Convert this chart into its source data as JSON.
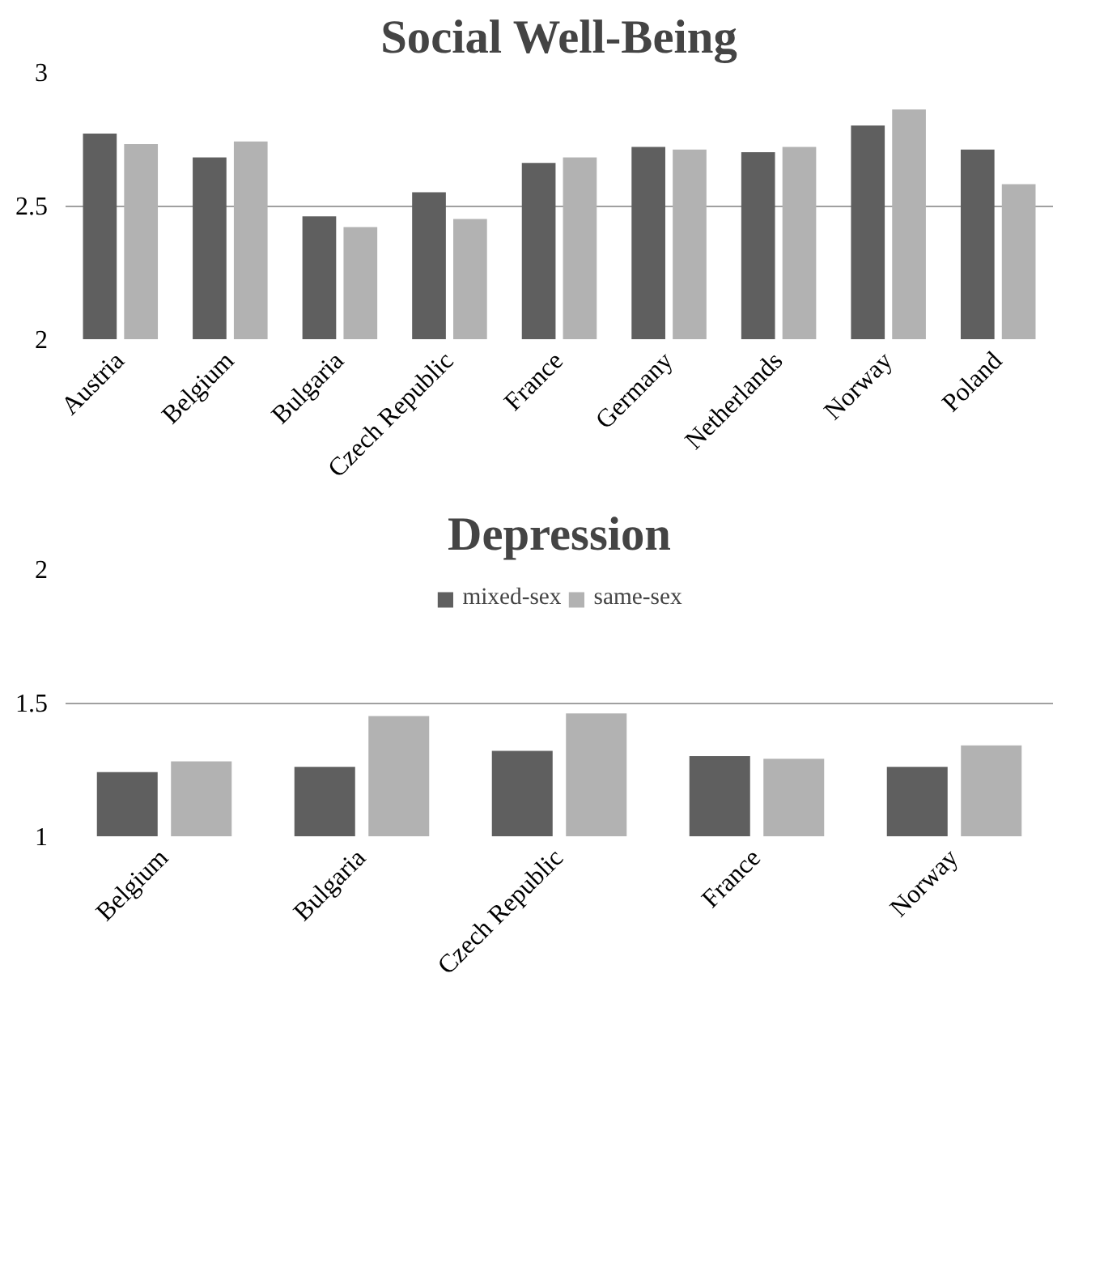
{
  "chart_data": [
    {
      "type": "bar",
      "title": "Social Well-Being",
      "categories": [
        "Austria",
        "Belgium",
        "Bulgaria",
        "Czech Republic",
        "France",
        "Germany",
        "Netherlands",
        "Norway",
        "Poland"
      ],
      "series": [
        {
          "color": "#5f5f5f",
          "values": [
            2.77,
            2.68,
            2.46,
            2.55,
            2.66,
            2.72,
            2.7,
            2.8,
            2.71
          ]
        },
        {
          "color": "#b2b2b2",
          "values": [
            2.73,
            2.74,
            2.42,
            2.45,
            2.68,
            2.71,
            2.72,
            2.86,
            2.58
          ]
        }
      ],
      "ylim": [
        2,
        3
      ],
      "yticks": [
        2,
        2.5,
        3
      ],
      "grid": "y"
    },
    {
      "type": "bar",
      "title": "Depression",
      "categories": [
        "Belgium",
        "Bulgaria",
        "Czech Republic",
        "France",
        "Norway"
      ],
      "series": [
        {
          "name": "mixed-sex",
          "color": "#5f5f5f",
          "values": [
            1.24,
            1.26,
            1.32,
            1.3,
            1.26
          ]
        },
        {
          "name": "same-sex",
          "color": "#b2b2b2",
          "values": [
            1.28,
            1.45,
            1.46,
            1.29,
            1.34
          ]
        }
      ],
      "ylim": [
        1,
        2
      ],
      "yticks": [
        1,
        1.5,
        2
      ],
      "grid": "y",
      "legend": "top"
    }
  ]
}
